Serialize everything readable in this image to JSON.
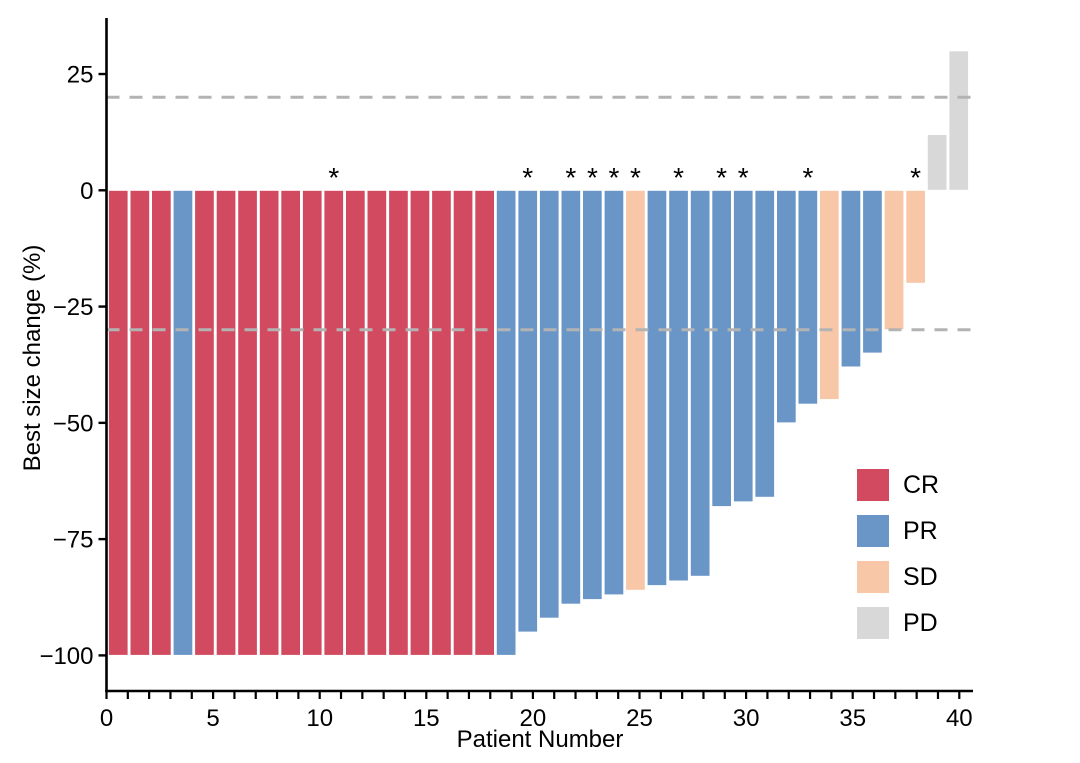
{
  "chart_data": {
    "type": "bar",
    "subtype": "waterfall",
    "title": "",
    "xlabel": "Patient Number",
    "ylabel": "Best size change (%)",
    "xlim": [
      0,
      41
    ],
    "ylim": [
      -108,
      36
    ],
    "x_major_ticks": [
      0,
      5,
      10,
      15,
      20,
      25,
      30,
      35,
      40
    ],
    "x_minor_tick_every": 1,
    "y_ticks": [
      25,
      0,
      -25,
      -50,
      -75,
      -100
    ],
    "y_tick_labels": [
      "25",
      "0",
      "−25",
      "−50",
      "−75",
      "−100"
    ],
    "grid": false,
    "reference_lines": [
      {
        "y": 20,
        "style": "dashed",
        "color": "#b3b3b3"
      },
      {
        "y": -30,
        "style": "dashed",
        "color": "#b3b3b3"
      }
    ],
    "colors": {
      "CR": "#d24a5f",
      "PR": "#6996c6",
      "SD": "#f8c7a7",
      "PD": "#d8d8d8"
    },
    "legend": {
      "position": "right-middle",
      "entries": [
        {
          "label": "CR",
          "color": "#d24a5f"
        },
        {
          "label": "PR",
          "color": "#6996c6"
        },
        {
          "label": "SD",
          "color": "#f8c7a7"
        },
        {
          "label": "PD",
          "color": "#d8d8d8"
        }
      ]
    },
    "patients": [
      {
        "patient": 1,
        "value": -100,
        "response": "CR",
        "flagged": false
      },
      {
        "patient": 2,
        "value": -100,
        "response": "CR",
        "flagged": false
      },
      {
        "patient": 3,
        "value": -100,
        "response": "CR",
        "flagged": false
      },
      {
        "patient": 4,
        "value": -100,
        "response": "PR",
        "flagged": false
      },
      {
        "patient": 5,
        "value": -100,
        "response": "CR",
        "flagged": false
      },
      {
        "patient": 6,
        "value": -100,
        "response": "CR",
        "flagged": false
      },
      {
        "patient": 7,
        "value": -100,
        "response": "CR",
        "flagged": false
      },
      {
        "patient": 8,
        "value": -100,
        "response": "CR",
        "flagged": false
      },
      {
        "patient": 9,
        "value": -100,
        "response": "CR",
        "flagged": false
      },
      {
        "patient": 10,
        "value": -100,
        "response": "CR",
        "flagged": false
      },
      {
        "patient": 11,
        "value": -100,
        "response": "CR",
        "flagged": true
      },
      {
        "patient": 12,
        "value": -100,
        "response": "CR",
        "flagged": false
      },
      {
        "patient": 13,
        "value": -100,
        "response": "CR",
        "flagged": false
      },
      {
        "patient": 14,
        "value": -100,
        "response": "CR",
        "flagged": false
      },
      {
        "patient": 15,
        "value": -100,
        "response": "CR",
        "flagged": false
      },
      {
        "patient": 16,
        "value": -100,
        "response": "CR",
        "flagged": false
      },
      {
        "patient": 17,
        "value": -100,
        "response": "CR",
        "flagged": false
      },
      {
        "patient": 18,
        "value": -100,
        "response": "CR",
        "flagged": false
      },
      {
        "patient": 19,
        "value": -100,
        "response": "PR",
        "flagged": false
      },
      {
        "patient": 20,
        "value": -95,
        "response": "PR",
        "flagged": true
      },
      {
        "patient": 21,
        "value": -92,
        "response": "PR",
        "flagged": false
      },
      {
        "patient": 22,
        "value": -89,
        "response": "PR",
        "flagged": true
      },
      {
        "patient": 23,
        "value": -88,
        "response": "PR",
        "flagged": true
      },
      {
        "patient": 24,
        "value": -87,
        "response": "PR",
        "flagged": true
      },
      {
        "patient": 25,
        "value": -86,
        "response": "SD",
        "flagged": true
      },
      {
        "patient": 26,
        "value": -85,
        "response": "PR",
        "flagged": false
      },
      {
        "patient": 27,
        "value": -84,
        "response": "PR",
        "flagged": true
      },
      {
        "patient": 28,
        "value": -83,
        "response": "PR",
        "flagged": false
      },
      {
        "patient": 29,
        "value": -68,
        "response": "PR",
        "flagged": true
      },
      {
        "patient": 30,
        "value": -67,
        "response": "PR",
        "flagged": true
      },
      {
        "patient": 31,
        "value": -66,
        "response": "PR",
        "flagged": false
      },
      {
        "patient": 32,
        "value": -50,
        "response": "PR",
        "flagged": false
      },
      {
        "patient": 33,
        "value": -46,
        "response": "PR",
        "flagged": true
      },
      {
        "patient": 34,
        "value": -45,
        "response": "SD",
        "flagged": false
      },
      {
        "patient": 35,
        "value": -38,
        "response": "PR",
        "flagged": false
      },
      {
        "patient": 36,
        "value": -35,
        "response": "PR",
        "flagged": false
      },
      {
        "patient": 37,
        "value": -30,
        "response": "SD",
        "flagged": false
      },
      {
        "patient": 38,
        "value": -20,
        "response": "SD",
        "flagged": true
      },
      {
        "patient": 39,
        "value": 12,
        "response": "PD",
        "flagged": false
      },
      {
        "patient": 40,
        "value": 30,
        "response": "PD",
        "flagged": false
      }
    ]
  },
  "annotations": {
    "asterisk": "*",
    "flagged_patients": [
      11,
      20,
      22,
      23,
      24,
      25,
      27,
      29,
      30,
      33,
      38
    ]
  }
}
